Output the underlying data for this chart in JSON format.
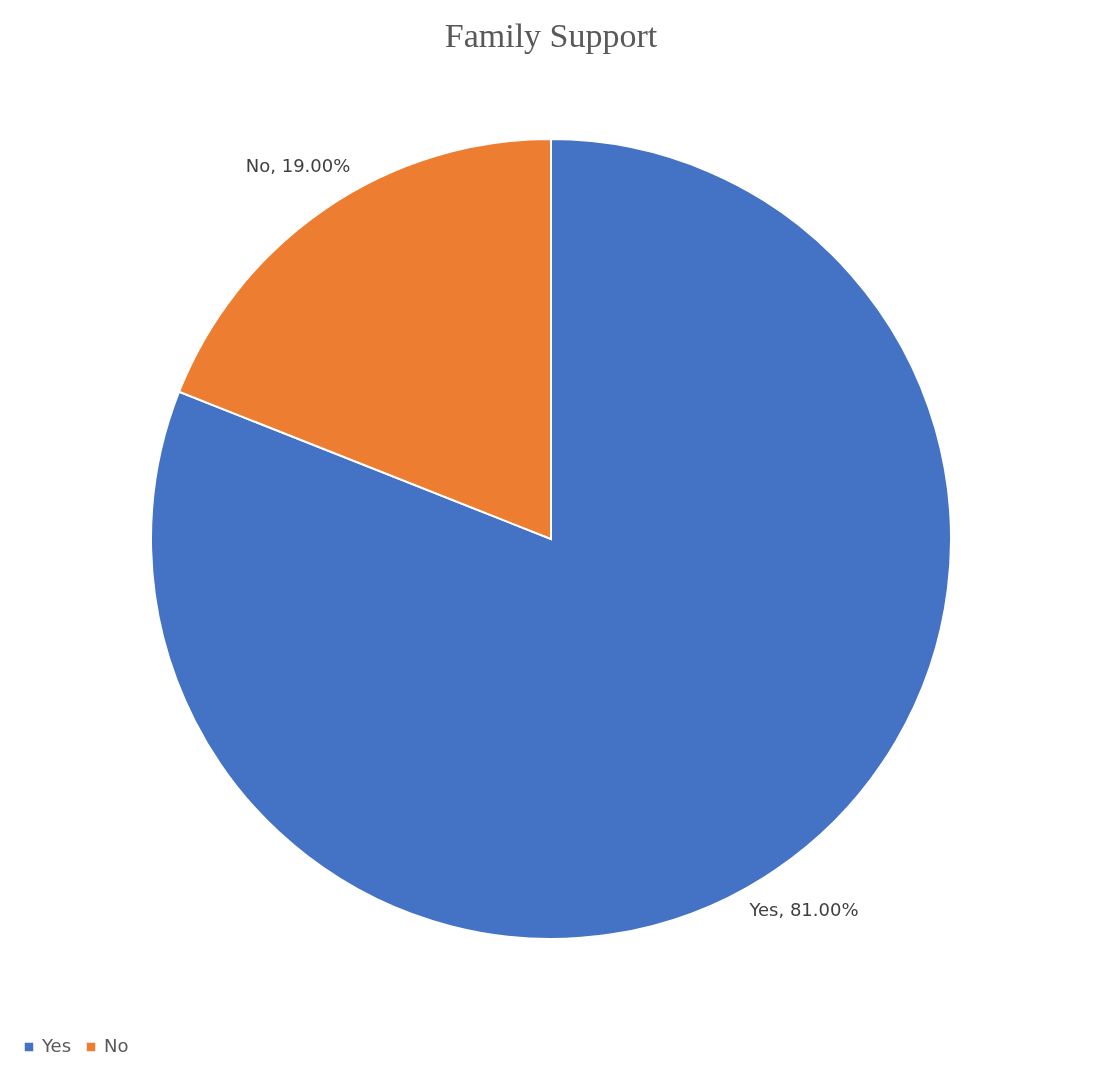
{
  "chart_data": {
    "type": "pie",
    "title": "Family Support",
    "categories": [
      "Yes",
      "No"
    ],
    "values": [
      81,
      19
    ],
    "colors": [
      "#4472c4",
      "#ed7d31"
    ],
    "value_labels": [
      "Yes, 81.00%",
      "No, 19.00%"
    ],
    "legend": "bottom"
  }
}
